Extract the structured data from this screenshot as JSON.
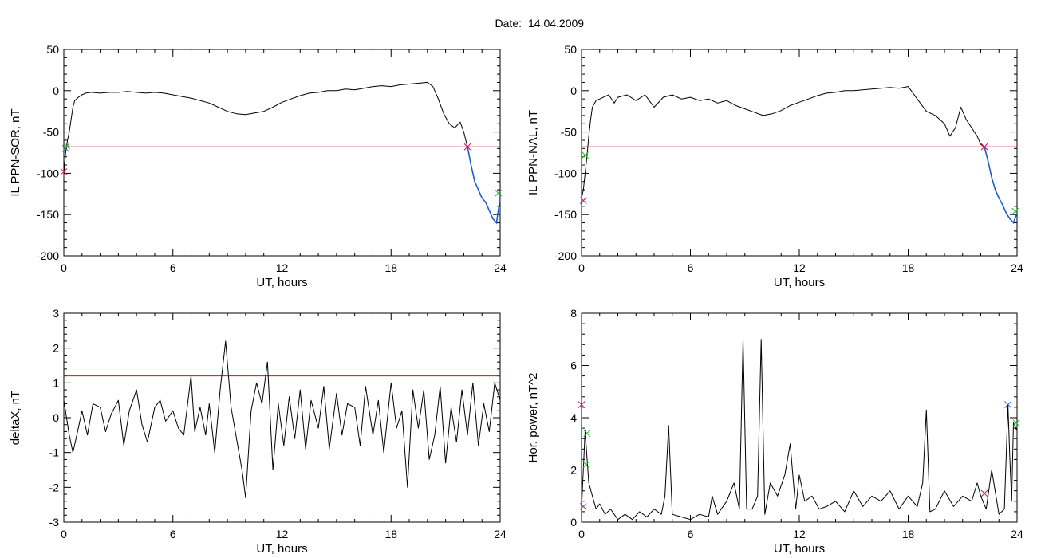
{
  "header": {
    "date_label": "Date:",
    "date_value": "14.04.2009"
  },
  "chart_data": [
    {
      "type": "line",
      "xlabel": "UT, hours",
      "ylabel": "IL PPN-SOR, nT",
      "xlim": [
        0,
        24
      ],
      "ylim": [
        -200,
        50
      ],
      "xticks": [
        0,
        6,
        12,
        18,
        24
      ],
      "yticks": [
        -200,
        -150,
        -100,
        -50,
        0,
        50
      ],
      "threshold": -68,
      "colors": {
        "line": "#000000",
        "highlight": "#1f5fd0",
        "threshold": "#d01010"
      },
      "x": [
        0,
        0.1,
        0.2,
        0.3,
        0.4,
        0.5,
        0.6,
        0.8,
        1.0,
        1.2,
        1.5,
        2.0,
        2.5,
        3.0,
        3.5,
        4.0,
        4.5,
        5.0,
        5.5,
        6.0,
        6.5,
        7.0,
        7.5,
        8.0,
        8.5,
        9.0,
        9.5,
        10.0,
        10.5,
        11.0,
        11.5,
        12.0,
        12.5,
        13.0,
        13.5,
        14.0,
        14.5,
        15.0,
        15.5,
        16.0,
        16.5,
        17.0,
        17.5,
        18.0,
        18.5,
        19.0,
        19.5,
        20.0,
        20.3,
        20.6,
        20.9,
        21.2,
        21.5,
        21.8,
        22.0,
        22.2,
        22.4,
        22.6,
        22.8,
        23.0,
        23.2,
        23.4,
        23.6,
        23.8,
        24.0
      ],
      "values": [
        -100,
        -75,
        -60,
        -50,
        -35,
        -20,
        -12,
        -8,
        -5,
        -3,
        -2,
        -3,
        -2,
        -2,
        -1,
        -2,
        -3,
        -2,
        -3,
        -5,
        -7,
        -9,
        -12,
        -15,
        -20,
        -25,
        -28,
        -29,
        -27,
        -25,
        -20,
        -14,
        -10,
        -6,
        -3,
        -2,
        0,
        0,
        2,
        1,
        3,
        5,
        6,
        5,
        7,
        8,
        9,
        10,
        5,
        -10,
        -28,
        -40,
        -45,
        -38,
        -50,
        -68,
        -90,
        -110,
        -120,
        -130,
        -135,
        -145,
        -155,
        -160,
        -130
      ],
      "highlight_x": [
        22.2,
        22.4,
        22.6,
        22.8,
        23.0,
        23.2,
        23.4,
        23.6,
        23.8,
        24.0
      ],
      "highlight_values": [
        -68,
        -90,
        -110,
        -120,
        -130,
        -135,
        -145,
        -155,
        -160,
        -130
      ],
      "markers": [
        {
          "x": 0.15,
          "y": -67,
          "color": "#20c020"
        },
        {
          "x": 0.1,
          "y": -70,
          "color": "#2060e0"
        },
        {
          "x": 22.2,
          "y": -68,
          "color": "#d01060"
        },
        {
          "x": 0.0,
          "y": -98,
          "color": "#d01060"
        },
        {
          "x": 23.9,
          "y": -124,
          "color": "#20c020"
        }
      ]
    },
    {
      "type": "line",
      "xlabel": "UT, hours",
      "ylabel": "IL PPN-NAL, nT",
      "xlim": [
        0,
        24
      ],
      "ylim": [
        -200,
        50
      ],
      "xticks": [
        0,
        6,
        12,
        18,
        24
      ],
      "yticks": [
        -200,
        -150,
        -100,
        -50,
        0,
        50
      ],
      "threshold": -68,
      "colors": {
        "line": "#000000",
        "highlight": "#1f5fd0",
        "threshold": "#d01010"
      },
      "x": [
        0,
        0.1,
        0.2,
        0.3,
        0.4,
        0.5,
        0.6,
        0.8,
        1.0,
        1.2,
        1.5,
        1.8,
        2.0,
        2.5,
        3.0,
        3.5,
        4.0,
        4.5,
        5.0,
        5.5,
        6.0,
        6.5,
        7.0,
        7.5,
        8.0,
        8.5,
        9.0,
        9.5,
        10.0,
        10.5,
        11.0,
        11.5,
        12.0,
        12.5,
        13.0,
        13.5,
        14.0,
        14.5,
        15.0,
        15.5,
        16.0,
        16.5,
        17.0,
        17.5,
        18.0,
        18.5,
        19.0,
        19.5,
        20.0,
        20.3,
        20.6,
        20.9,
        21.2,
        21.5,
        21.8,
        22.0,
        22.2,
        22.4,
        22.6,
        22.8,
        23.0,
        23.2,
        23.4,
        23.6,
        23.8,
        24.0
      ],
      "values": [
        -130,
        -120,
        -100,
        -80,
        -55,
        -35,
        -20,
        -12,
        -10,
        -8,
        -5,
        -15,
        -8,
        -5,
        -12,
        -5,
        -20,
        -8,
        -5,
        -10,
        -8,
        -12,
        -10,
        -15,
        -12,
        -18,
        -22,
        -26,
        -30,
        -28,
        -24,
        -18,
        -14,
        -10,
        -6,
        -3,
        -2,
        0,
        0,
        1,
        2,
        3,
        4,
        3,
        5,
        -10,
        -25,
        -30,
        -40,
        -55,
        -45,
        -20,
        -35,
        -45,
        -55,
        -65,
        -68,
        -85,
        -105,
        -120,
        -130,
        -138,
        -148,
        -155,
        -160,
        -148
      ],
      "highlight_x": [
        22.2,
        22.4,
        22.6,
        22.8,
        23.0,
        23.2,
        23.4,
        23.6,
        23.8,
        24.0
      ],
      "highlight_values": [
        -68,
        -85,
        -105,
        -120,
        -130,
        -138,
        -148,
        -155,
        -160,
        -148
      ],
      "markers": [
        {
          "x": 0.2,
          "y": -78,
          "color": "#20c020"
        },
        {
          "x": 0.1,
          "y": -133,
          "color": "#d01060"
        },
        {
          "x": 22.2,
          "y": -68,
          "color": "#d01060"
        },
        {
          "x": 23.9,
          "y": -146,
          "color": "#20c020"
        }
      ]
    },
    {
      "type": "line",
      "xlabel": "UT, hours",
      "ylabel": "deltaX, nT",
      "xlim": [
        0,
        24
      ],
      "ylim": [
        -3,
        3
      ],
      "xticks": [
        0,
        6,
        12,
        18,
        24
      ],
      "yticks": [
        -3,
        -2,
        -1,
        0,
        1,
        2,
        3
      ],
      "threshold": 1.2,
      "colors": {
        "line": "#000000",
        "threshold": "#d01010"
      },
      "x": [
        0,
        0.3,
        0.5,
        0.8,
        1.0,
        1.3,
        1.6,
        2.0,
        2.3,
        2.6,
        3.0,
        3.3,
        3.6,
        4.0,
        4.3,
        4.6,
        5.0,
        5.3,
        5.6,
        6.0,
        6.3,
        6.6,
        7.0,
        7.2,
        7.5,
        7.8,
        8.0,
        8.3,
        8.6,
        8.9,
        9.2,
        9.5,
        9.8,
        10.0,
        10.3,
        10.6,
        10.9,
        11.2,
        11.5,
        11.8,
        12.1,
        12.4,
        12.7,
        13.0,
        13.3,
        13.6,
        14.0,
        14.3,
        14.6,
        15.0,
        15.3,
        15.6,
        16.0,
        16.3,
        16.6,
        17.0,
        17.3,
        17.6,
        18.0,
        18.3,
        18.6,
        18.9,
        19.2,
        19.5,
        19.8,
        20.1,
        20.4,
        20.7,
        21.0,
        21.3,
        21.6,
        21.9,
        22.2,
        22.5,
        22.8,
        23.1,
        23.4,
        23.7,
        24.0
      ],
      "values": [
        0.5,
        -0.5,
        -1.0,
        -0.3,
        0.2,
        -0.5,
        0.4,
        0.3,
        -0.4,
        0.1,
        0.5,
        -0.8,
        0.2,
        0.8,
        -0.2,
        -0.7,
        0.3,
        0.5,
        -0.1,
        0.2,
        -0.3,
        -0.5,
        1.2,
        -0.4,
        0.3,
        -0.5,
        0.4,
        -1.0,
        0.8,
        2.2,
        0.3,
        -0.6,
        -1.5,
        -2.3,
        0.2,
        1.0,
        0.4,
        1.6,
        -1.5,
        0.4,
        -0.8,
        0.6,
        -0.6,
        0.8,
        -0.9,
        0.5,
        -0.3,
        0.9,
        -0.9,
        0.7,
        -0.5,
        0.4,
        0.3,
        -0.8,
        0.9,
        -0.5,
        0.5,
        -1.0,
        1.0,
        -0.3,
        0.2,
        -2.0,
        0.8,
        -0.3,
        0.8,
        -1.2,
        -0.5,
        0.9,
        -1.3,
        0.3,
        -0.7,
        0.8,
        -0.5,
        1.0,
        -0.8,
        0.4,
        -0.4,
        1.0,
        0.5
      ],
      "markers": []
    },
    {
      "type": "line",
      "xlabel": "UT, hours",
      "ylabel": "Hor. power, nT^2",
      "xlim": [
        0,
        24
      ],
      "ylim": [
        0,
        8
      ],
      "xticks": [
        0,
        6,
        12,
        18,
        24
      ],
      "yticks": [
        0,
        2,
        4,
        6,
        8
      ],
      "colors": {
        "line": "#000000"
      },
      "x": [
        0,
        0.2,
        0.4,
        0.6,
        0.8,
        1.0,
        1.3,
        1.6,
        2.0,
        2.4,
        2.8,
        3.2,
        3.6,
        4.0,
        4.4,
        4.6,
        4.8,
        5.0,
        5.5,
        6.0,
        6.5,
        7.0,
        7.2,
        7.5,
        8.0,
        8.4,
        8.7,
        8.9,
        9.1,
        9.4,
        9.7,
        9.9,
        10.1,
        10.4,
        10.8,
        11.2,
        11.5,
        11.8,
        12.0,
        12.3,
        12.7,
        13.1,
        13.5,
        14.0,
        14.5,
        15.0,
        15.5,
        16.0,
        16.5,
        17.0,
        17.5,
        18.0,
        18.5,
        18.8,
        19.0,
        19.2,
        19.5,
        20.0,
        20.5,
        21.0,
        21.5,
        21.8,
        22.0,
        22.3,
        22.6,
        23.0,
        23.3,
        23.5,
        23.6,
        23.7,
        23.8,
        24.0
      ],
      "values": [
        0.5,
        3.5,
        1.5,
        1.0,
        0.5,
        0.7,
        0.3,
        0.5,
        0.1,
        0.3,
        0.1,
        0.4,
        0.2,
        0.5,
        0.3,
        1.0,
        3.7,
        0.3,
        0.2,
        0.1,
        0.3,
        0.2,
        1.0,
        0.3,
        0.8,
        1.5,
        0.5,
        7.0,
        0.5,
        0.5,
        1.0,
        7.0,
        0.3,
        1.5,
        1.0,
        1.8,
        3.0,
        0.5,
        1.8,
        0.8,
        1.0,
        0.5,
        0.6,
        0.8,
        0.4,
        1.2,
        0.6,
        1.0,
        0.8,
        1.2,
        0.5,
        1.0,
        0.6,
        1.5,
        4.3,
        0.4,
        0.5,
        1.2,
        0.6,
        1.0,
        0.8,
        1.5,
        1.0,
        0.5,
        2.0,
        0.3,
        0.5,
        4.5,
        2.5,
        0.8,
        3.8,
        3.5
      ],
      "markers": [
        {
          "x": 0.0,
          "y": 4.5,
          "color": "#d01060"
        },
        {
          "x": 0.3,
          "y": 3.4,
          "color": "#20c020"
        },
        {
          "x": 0.25,
          "y": 2.2,
          "color": "#20c020"
        },
        {
          "x": 0.1,
          "y": 0.6,
          "color": "#8040c0"
        },
        {
          "x": 22.2,
          "y": 1.1,
          "color": "#d01060"
        },
        {
          "x": 23.5,
          "y": 4.5,
          "color": "#2060e0"
        },
        {
          "x": 23.95,
          "y": 3.8,
          "color": "#20c020"
        }
      ]
    }
  ]
}
